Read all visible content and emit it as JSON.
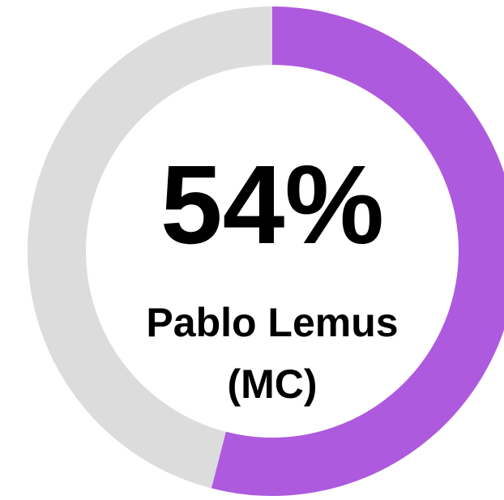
{
  "chart_data": {
    "type": "donut",
    "categories": [
      "Pablo Lemus (MC)",
      null
    ],
    "values": [
      54,
      46
    ],
    "value_labels": [
      "54%",
      null
    ],
    "colors": [
      "#ad5ade",
      "#dcdcdc"
    ]
  }
}
